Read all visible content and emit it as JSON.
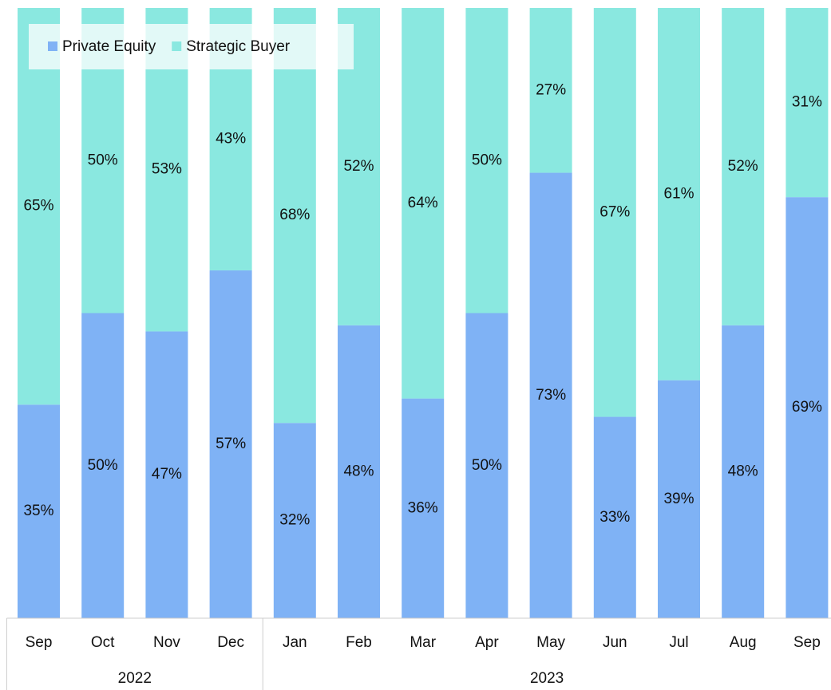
{
  "chart_data": {
    "type": "stacked_bar",
    "categories": [
      "Sep",
      "Oct",
      "Nov",
      "Dec",
      "Jan",
      "Feb",
      "Mar",
      "Apr",
      "May",
      "Jun",
      "Jul",
      "Aug",
      "Sep"
    ],
    "x_groups": [
      {
        "label": "2022",
        "size": 4
      },
      {
        "label": "2023",
        "size": 9
      }
    ],
    "series": [
      {
        "name": "Private Equity",
        "color": "#7fb2f5",
        "values": [
          35,
          50,
          47,
          57,
          32,
          48,
          36,
          50,
          73,
          33,
          39,
          48,
          69
        ],
        "value_labels": [
          "35%",
          "50%",
          "47%",
          "57%",
          "32%",
          "48%",
          "36%",
          "50%",
          "73%",
          "33%",
          "39%",
          "48%",
          "69%"
        ]
      },
      {
        "name": "Strategic Buyer",
        "color": "#8ae8e0",
        "values": [
          65,
          50,
          53,
          43,
          68,
          52,
          64,
          50,
          27,
          67,
          61,
          52,
          31
        ],
        "value_labels": [
          "65%",
          "50%",
          "53%",
          "43%",
          "68%",
          "52%",
          "64%",
          "50%",
          "27%",
          "67%",
          "61%",
          "52%",
          "31%"
        ]
      }
    ],
    "ylim": [
      0,
      100
    ],
    "legend": "top-left"
  }
}
